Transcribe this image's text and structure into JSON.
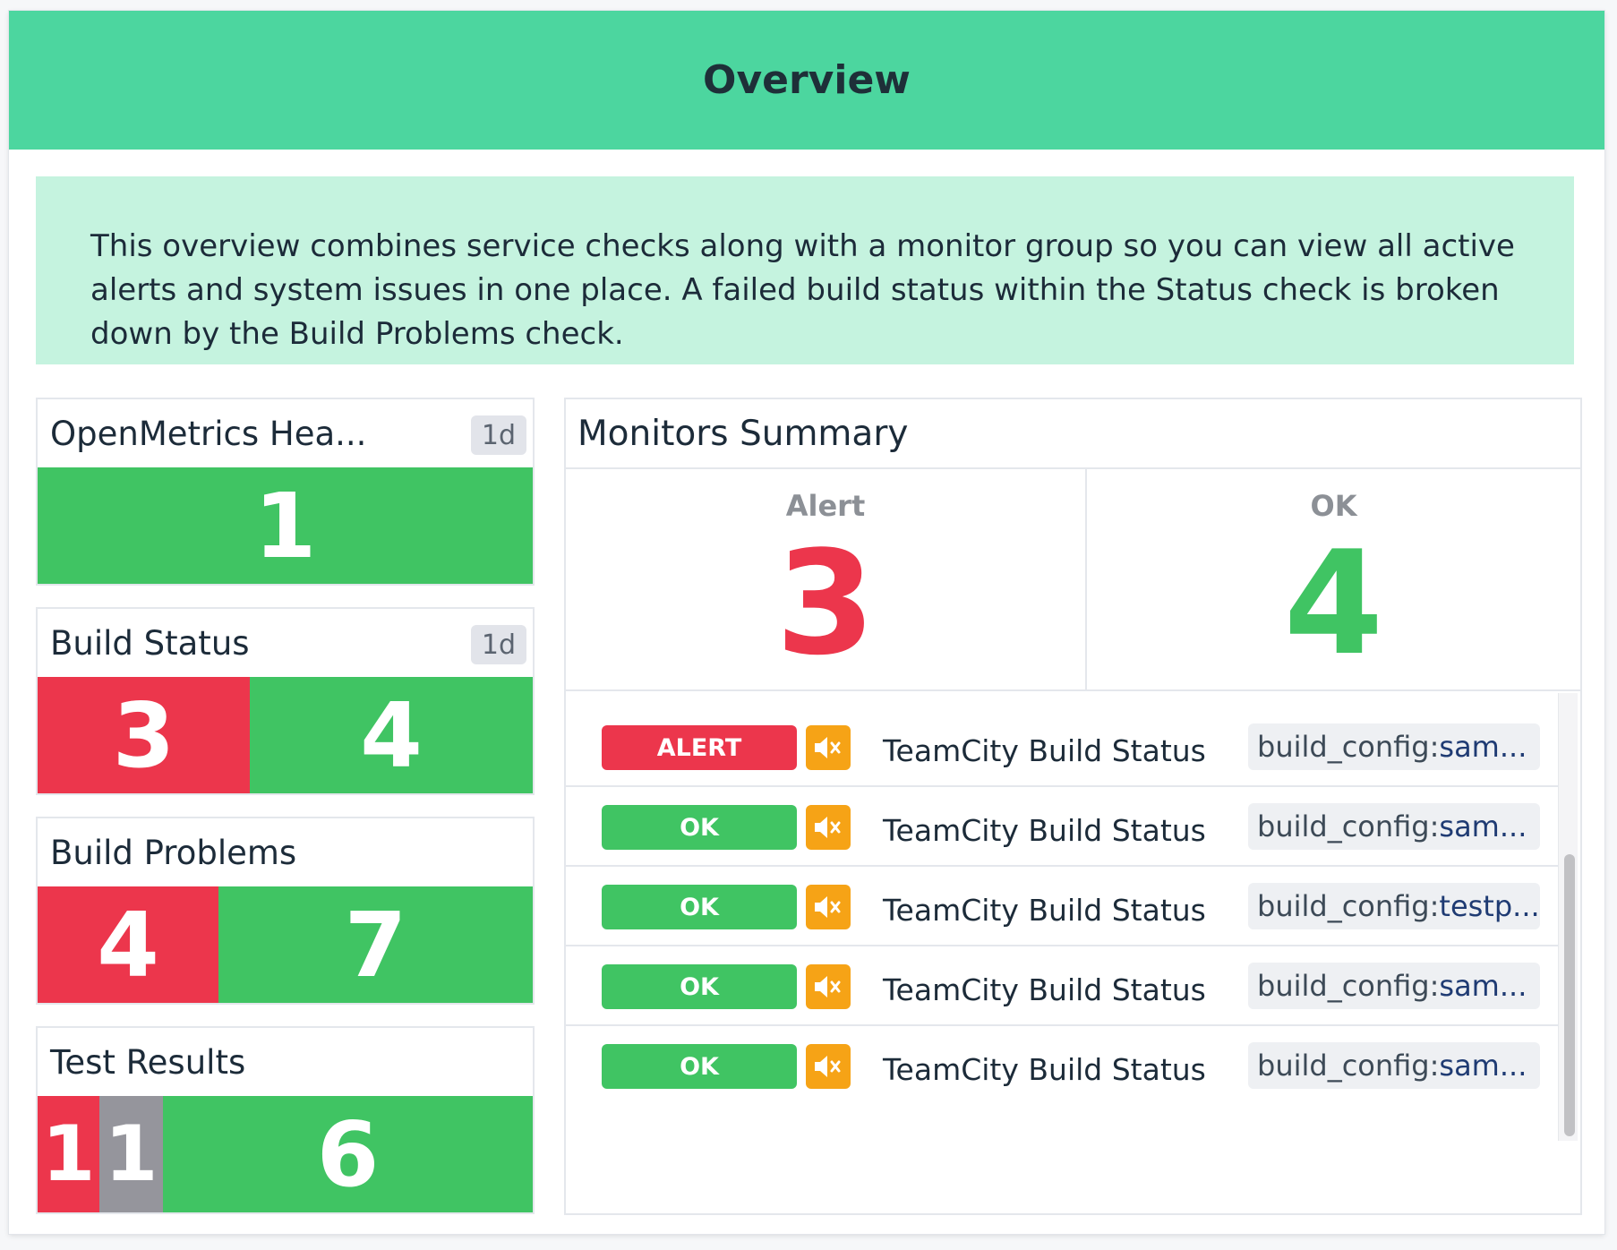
{
  "header": {
    "title": "Overview"
  },
  "note": {
    "text": "This overview combines service checks along with a monitor group so you can view all active alerts and system issues in one place. A failed build status within the Status check is broken down by the Build Problems check."
  },
  "widgets": [
    {
      "title": "OpenMetrics Hea...",
      "badge": "1d",
      "segments": [
        {
          "value": "1",
          "status": "ok"
        }
      ]
    },
    {
      "title": "Build Status",
      "badge": "1d",
      "segments": [
        {
          "value": "3",
          "status": "alert"
        },
        {
          "value": "4",
          "status": "ok"
        }
      ]
    },
    {
      "title": "Build Problems",
      "badge": "",
      "segments": [
        {
          "value": "4",
          "status": "alert"
        },
        {
          "value": "7",
          "status": "ok"
        }
      ]
    },
    {
      "title": "Test Results",
      "badge": "",
      "segments": [
        {
          "value": "1",
          "status": "alert"
        },
        {
          "value": "1",
          "status": "skipped"
        },
        {
          "value": "6",
          "status": "ok"
        }
      ]
    }
  ],
  "summary": {
    "title": "Monitors Summary",
    "alert_label": "Alert",
    "alert_count": "3",
    "ok_label": "OK",
    "ok_count": "4",
    "rows": [
      {
        "status": "ALERT",
        "icon": "mute-icon",
        "name": "TeamCity Build Status",
        "tag_key": "build_config:",
        "tag_value": "sam..."
      },
      {
        "status": "OK",
        "icon": "mute-icon",
        "name": "TeamCity Build Status",
        "tag_key": "build_config:",
        "tag_value": "sam..."
      },
      {
        "status": "OK",
        "icon": "mute-icon",
        "name": "TeamCity Build Status",
        "tag_key": "build_config:",
        "tag_value": "testp..."
      },
      {
        "status": "OK",
        "icon": "mute-icon",
        "name": "TeamCity Build Status",
        "tag_key": "build_config:",
        "tag_value": "sam..."
      },
      {
        "status": "OK",
        "icon": "mute-icon",
        "name": "TeamCity Build Status",
        "tag_key": "build_config:",
        "tag_value": "sam..."
      }
    ]
  },
  "colors": {
    "header": "#4cd69f",
    "note": "#c5f3df",
    "alert": "#ec364c",
    "ok": "#40c463",
    "skipped": "#95959c",
    "mute": "#f6a316"
  }
}
